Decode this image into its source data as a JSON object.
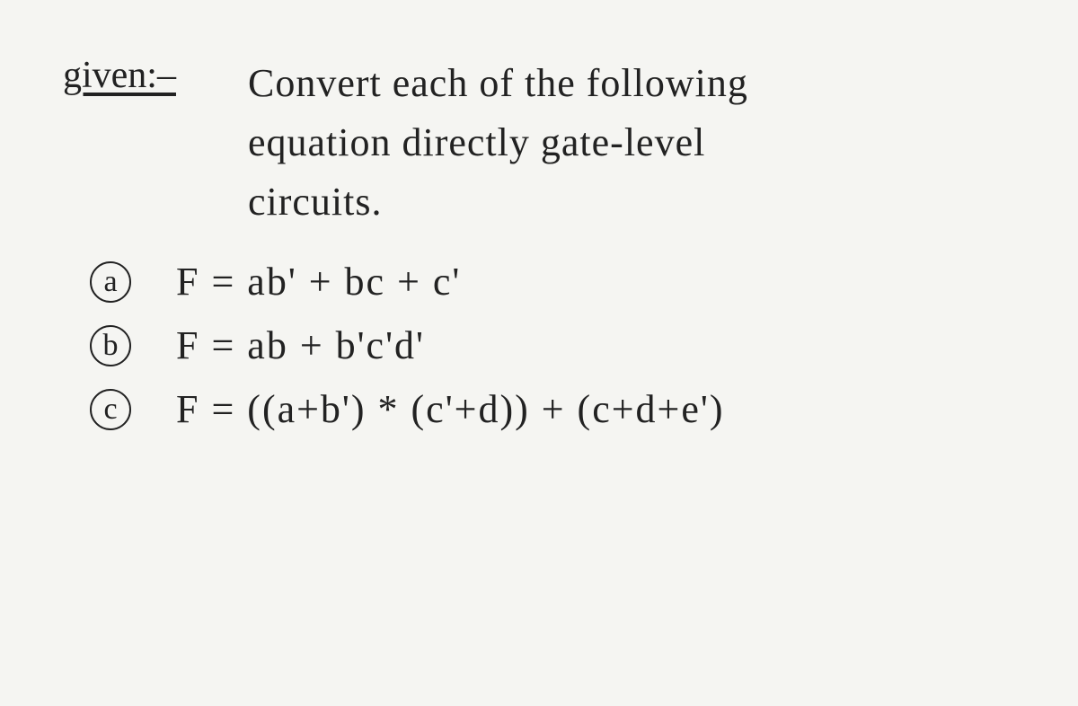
{
  "header": {
    "given_label": "given:–",
    "prompt_line1": "Convert each of the following",
    "prompt_line2": "equation directly gate-level",
    "prompt_line3": "circuits."
  },
  "equations": [
    {
      "label": "a",
      "expression": "F = ab' + bc + c'"
    },
    {
      "label": "b",
      "expression": "F = ab + b'c'd'"
    },
    {
      "label": "c",
      "expression": "F = ((a+b') * (c'+d)) + (c+d+e')"
    }
  ],
  "style": {
    "font_family": "cursive",
    "text_color": "#222222",
    "background_color": "#f5f5f2",
    "title_fontsize": 42,
    "body_fontsize": 44,
    "circle_border_width": 2
  }
}
